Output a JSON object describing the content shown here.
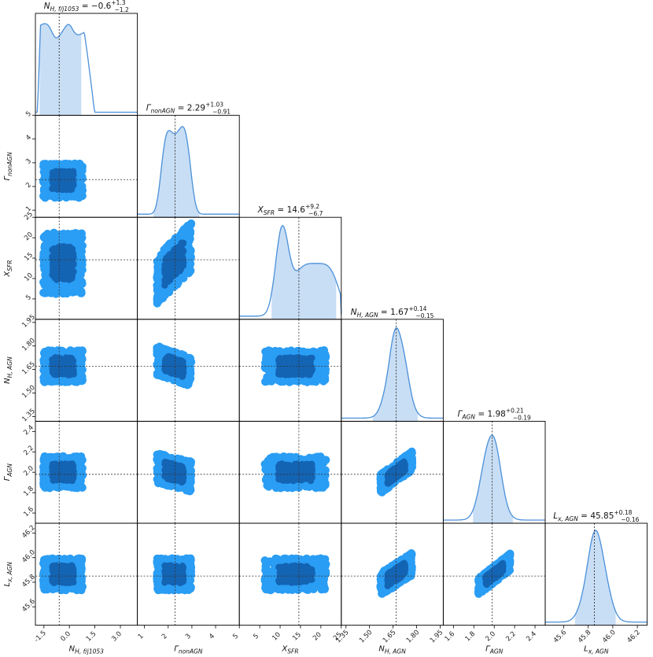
{
  "chart_data": {
    "type": "corner",
    "parameters": [
      {
        "label_main": "N",
        "label_sub": "H, f/j1053",
        "title_main": "N",
        "title_sub": "H, f/j1053",
        "title_text": " = −0.6",
        "err_plus": "+1.3",
        "err_minus": "−1.2",
        "range": [
          -2.0,
          4.0
        ],
        "ticks": [
          "-1.5",
          "0.0",
          "1.5",
          "3.0"
        ],
        "tick_values": [
          -1.5,
          0.0,
          1.5,
          3.0
        ],
        "median": -0.6
      },
      {
        "label_main": "Γ",
        "label_sub": "nonAGN",
        "title_main": "Γ",
        "title_sub": "nonAGN",
        "title_text": " = 2.29",
        "err_plus": "+1.03",
        "err_minus": "−0.91",
        "range": [
          0.7,
          5.0
        ],
        "ticks": [
          "1",
          "2",
          "3",
          "4",
          "5"
        ],
        "tick_values": [
          1,
          2,
          3,
          4,
          5
        ],
        "median": 2.29
      },
      {
        "label_main": "X",
        "label_sub": "SFR",
        "title_main": "X",
        "title_sub": "SFR",
        "title_text": " = 14.6",
        "err_plus": "+9.2",
        "err_minus": "−6.7",
        "range": [
          0.0,
          25.0
        ],
        "ticks": [
          "5",
          "10",
          "15",
          "20",
          "25"
        ],
        "tick_values": [
          5,
          10,
          15,
          20,
          25
        ],
        "median": 14.6
      },
      {
        "label_main": "N",
        "label_sub": "H, AGN",
        "title_main": "N",
        "title_sub": "H, AGN",
        "title_text": " = 1.67",
        "err_plus": "+0.14",
        "err_minus": "−0.15",
        "range": [
          1.32,
          1.97
        ],
        "ticks": [
          "1.35",
          "1.50",
          "1.65",
          "1.80",
          "1.95"
        ],
        "tick_values": [
          1.35,
          1.5,
          1.65,
          1.8,
          1.95
        ],
        "median": 1.67
      },
      {
        "label_main": "Γ",
        "label_sub": "AGN",
        "title_main": "Γ",
        "title_sub": "AGN",
        "title_text": " = 1.98",
        "err_plus": "+0.21",
        "err_minus": "−0.19",
        "range": [
          1.5,
          2.5
        ],
        "ticks": [
          "1.6",
          "1.8",
          "2.0",
          "2.2",
          "2.4"
        ],
        "tick_values": [
          1.6,
          1.8,
          2.0,
          2.2,
          2.4
        ],
        "median": 1.98
      },
      {
        "label_main": "L",
        "label_sub": "x, AGN",
        "title_main": "L",
        "title_sub": "x, AGN",
        "title_text": " = 45.85",
        "err_plus": "+0.18",
        "err_minus": "−0.16",
        "range": [
          45.45,
          46.28
        ],
        "ticks": [
          "45.6",
          "45.8",
          "46.0",
          "46.2"
        ],
        "tick_values": [
          45.6,
          45.8,
          46.0,
          46.2
        ],
        "median": 45.85
      }
    ],
    "contour_levels": [
      "outer",
      "inner"
    ],
    "correlations": {
      "1-0": 0.0,
      "2-0": 0.0,
      "2-1": 0.6,
      "3-0": 0.0,
      "3-1": -0.4,
      "3-2": 0.0,
      "4-0": 0.0,
      "4-1": -0.3,
      "4-2": 0.0,
      "4-3": 0.8,
      "5-0": 0.0,
      "5-1": 0.0,
      "5-2": 0.0,
      "5-3": 0.7,
      "5-4": 0.85
    },
    "colors": {
      "outer": "#2a9df4",
      "inner": "#1464b4",
      "hist_line": "#4a90d9",
      "hist_fill": "#c8def5",
      "frame": "#000000",
      "guide": "#333333"
    },
    "grid": false
  }
}
